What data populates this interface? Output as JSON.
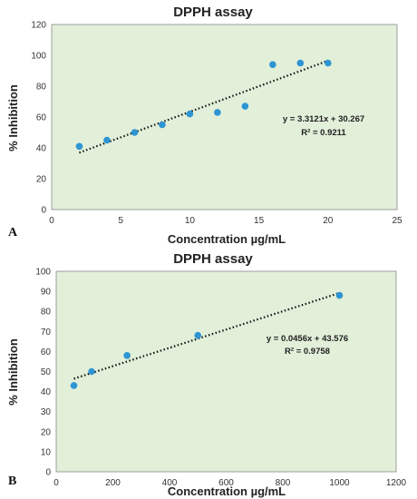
{
  "colors": {
    "plot_bg": "#e2efd9",
    "marker": "#2e95d3",
    "trendline": "#111111"
  },
  "chart_data": [
    {
      "type": "scatter",
      "panel_label": "A",
      "title": "DPPH assay",
      "xlabel": "Concentration µg/mL",
      "ylabel": "% Inhibition",
      "xlim": [
        0,
        25
      ],
      "ylim": [
        0,
        120
      ],
      "xticks": [
        0,
        5,
        10,
        15,
        20,
        25
      ],
      "yticks": [
        0,
        20,
        40,
        60,
        80,
        100,
        120
      ],
      "x": [
        2,
        4,
        6,
        8,
        10,
        12,
        14,
        16,
        18,
        20
      ],
      "y": [
        41,
        45,
        50,
        55,
        62,
        63,
        67,
        94,
        95,
        95
      ],
      "trendline": {
        "slope": 3.3121,
        "intercept": 30.267,
        "x_range": [
          2,
          20
        ],
        "equation": "y = 3.3121x + 30.267",
        "r2": "R² = 0.9211"
      },
      "grid": false
    },
    {
      "type": "scatter",
      "panel_label": "B",
      "title": "DPPH assay",
      "xlabel": "Concentration µg/mL",
      "ylabel": "% Inhibition",
      "xlim": [
        0,
        1200
      ],
      "ylim": [
        0,
        100
      ],
      "xticks": [
        0,
        200,
        400,
        600,
        800,
        1000,
        1200
      ],
      "yticks": [
        0,
        10,
        20,
        30,
        40,
        50,
        60,
        70,
        80,
        90,
        100
      ],
      "x": [
        62.5,
        125,
        250,
        500,
        1000
      ],
      "y": [
        43,
        50,
        58,
        68,
        88
      ],
      "trendline": {
        "slope": 0.0456,
        "intercept": 43.576,
        "x_range": [
          62.5,
          1000
        ],
        "equation": "y = 0.0456x + 43.576",
        "r2": "R² = 0.9758"
      },
      "grid": false
    }
  ]
}
